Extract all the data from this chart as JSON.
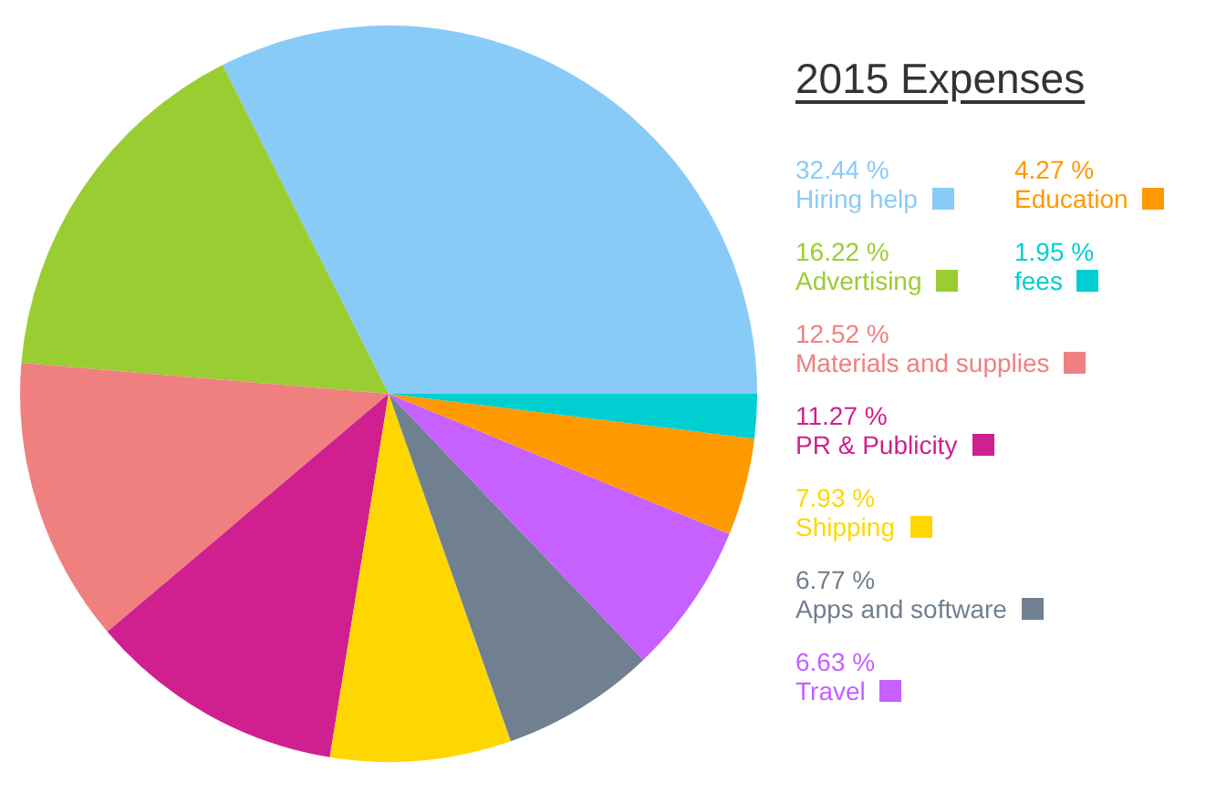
{
  "chart_data": {
    "type": "pie",
    "title": "2015 Expenses",
    "categories": [
      "Hiring help",
      "Advertising",
      "Materials and supplies",
      "PR & Publicity",
      "Shipping",
      "Apps and software",
      "Travel",
      "Education",
      "fees"
    ],
    "values": [
      32.44,
      16.22,
      12.52,
      11.27,
      7.93,
      6.77,
      6.63,
      4.27,
      1.95
    ],
    "value_labels": [
      "32.44 %",
      "16.22 %",
      "12.52 %",
      "11.27 %",
      "7.93 %",
      "6.77 %",
      "6.63 %",
      "4.27 %",
      "1.95 %"
    ],
    "colors": [
      "#89cbf7",
      "#9acd32",
      "#f08080",
      "#d01f8f",
      "#ffd700",
      "#708090",
      "#c660ff",
      "#ff9900",
      "#00ced1"
    ],
    "legend": "right"
  }
}
